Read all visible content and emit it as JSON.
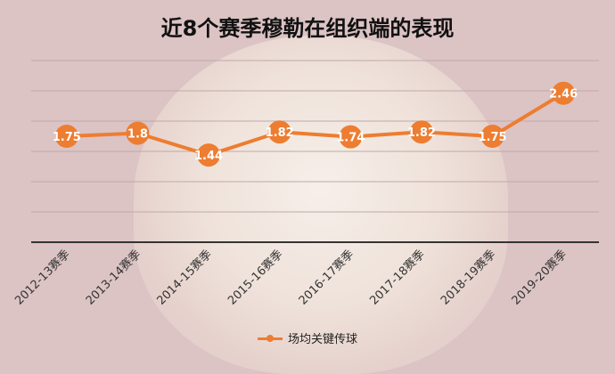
{
  "chart_data": {
    "type": "line",
    "title": "近8个赛季穆勒在组织端的表现",
    "categories": [
      "2012-13赛季",
      "2013-14赛季",
      "2014-15赛季",
      "2015-16赛季",
      "2016-17赛季",
      "2017-18赛季",
      "2018-19赛季",
      "2019-20赛季"
    ],
    "series": [
      {
        "name": "场均关键传球",
        "values": [
          1.75,
          1.8,
          1.44,
          1.82,
          1.74,
          1.82,
          1.75,
          2.46
        ],
        "color": "#ed7d31"
      }
    ],
    "ylim": [
      0,
      3
    ],
    "grid": true,
    "legend": "bottom"
  }
}
